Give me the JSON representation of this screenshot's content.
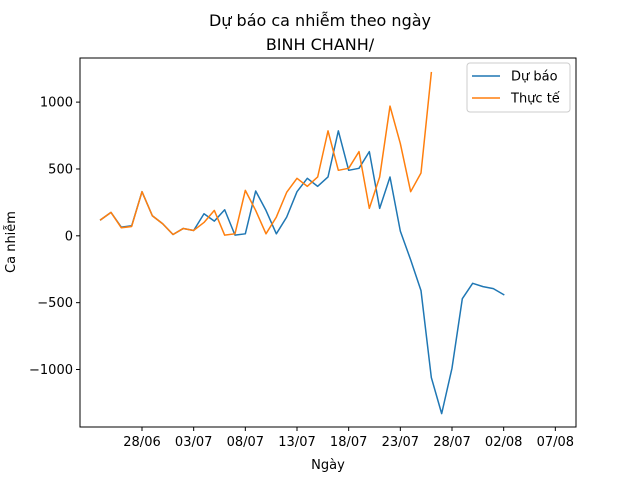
{
  "chart_data": {
    "type": "line",
    "title": "Dự báo ca nhiễm theo ngày",
    "subtitle": "BINH CHANH/",
    "xlabel": "Ngày",
    "ylabel": "Ca nhiễm",
    "xlim": [
      "2021-06-22",
      "2021-08-09"
    ],
    "ylim": [
      -1430,
      1330
    ],
    "x_ticks": [
      {
        "date": "2021-06-28",
        "label": "28/06"
      },
      {
        "date": "2021-07-03",
        "label": "03/07"
      },
      {
        "date": "2021-07-08",
        "label": "08/07"
      },
      {
        "date": "2021-07-13",
        "label": "13/07"
      },
      {
        "date": "2021-07-18",
        "label": "18/07"
      },
      {
        "date": "2021-07-23",
        "label": "23/07"
      },
      {
        "date": "2021-07-28",
        "label": "28/07"
      },
      {
        "date": "2021-08-02",
        "label": "02/08"
      },
      {
        "date": "2021-08-07",
        "label": "07/08"
      }
    ],
    "y_ticks": [
      {
        "value": 1000,
        "label": "1000"
      },
      {
        "value": 500,
        "label": "500"
      },
      {
        "value": 0,
        "label": "0"
      },
      {
        "value": -500,
        "label": "−500"
      },
      {
        "value": -1000,
        "label": "−1000"
      }
    ],
    "grid": false,
    "legend_position": "top-right",
    "series": [
      {
        "name": "Dự báo",
        "color": "#1f77b4",
        "points": [
          [
            "2021-06-24",
            120
          ],
          [
            "2021-06-25",
            175
          ],
          [
            "2021-06-26",
            65
          ],
          [
            "2021-06-27",
            75
          ],
          [
            "2021-06-28",
            330
          ],
          [
            "2021-06-29",
            150
          ],
          [
            "2021-06-30",
            90
          ],
          [
            "2021-07-01",
            10
          ],
          [
            "2021-07-02",
            55
          ],
          [
            "2021-07-03",
            40
          ],
          [
            "2021-07-04",
            165
          ],
          [
            "2021-07-05",
            110
          ],
          [
            "2021-07-06",
            195
          ],
          [
            "2021-07-07",
            5
          ],
          [
            "2021-07-08",
            15
          ],
          [
            "2021-07-09",
            335
          ],
          [
            "2021-07-10",
            190
          ],
          [
            "2021-07-11",
            15
          ],
          [
            "2021-07-12",
            140
          ],
          [
            "2021-07-13",
            330
          ],
          [
            "2021-07-14",
            430
          ],
          [
            "2021-07-15",
            370
          ],
          [
            "2021-07-16",
            440
          ],
          [
            "2021-07-17",
            785
          ],
          [
            "2021-07-18",
            490
          ],
          [
            "2021-07-19",
            505
          ],
          [
            "2021-07-20",
            630
          ],
          [
            "2021-07-21",
            205
          ],
          [
            "2021-07-22",
            440
          ],
          [
            "2021-07-23",
            35
          ],
          [
            "2021-07-24",
            -180
          ],
          [
            "2021-07-25",
            -410
          ],
          [
            "2021-07-26",
            -1060
          ],
          [
            "2021-07-27",
            -1330
          ],
          [
            "2021-07-28",
            -990
          ],
          [
            "2021-07-29",
            -470
          ],
          [
            "2021-07-30",
            -355
          ],
          [
            "2021-07-31",
            -380
          ],
          [
            "2021-08-01",
            -395
          ],
          [
            "2021-08-02",
            -440
          ]
        ]
      },
      {
        "name": "Thực tế",
        "color": "#ff7f0e",
        "points": [
          [
            "2021-06-24",
            120
          ],
          [
            "2021-06-25",
            175
          ],
          [
            "2021-06-26",
            60
          ],
          [
            "2021-06-27",
            70
          ],
          [
            "2021-06-28",
            330
          ],
          [
            "2021-06-29",
            150
          ],
          [
            "2021-06-30",
            90
          ],
          [
            "2021-07-01",
            10
          ],
          [
            "2021-07-02",
            55
          ],
          [
            "2021-07-03",
            40
          ],
          [
            "2021-07-04",
            100
          ],
          [
            "2021-07-05",
            190
          ],
          [
            "2021-07-06",
            5
          ],
          [
            "2021-07-07",
            15
          ],
          [
            "2021-07-08",
            340
          ],
          [
            "2021-07-09",
            190
          ],
          [
            "2021-07-10",
            15
          ],
          [
            "2021-07-11",
            140
          ],
          [
            "2021-07-12",
            325
          ],
          [
            "2021-07-13",
            430
          ],
          [
            "2021-07-14",
            370
          ],
          [
            "2021-07-15",
            440
          ],
          [
            "2021-07-16",
            785
          ],
          [
            "2021-07-17",
            490
          ],
          [
            "2021-07-18",
            505
          ],
          [
            "2021-07-19",
            630
          ],
          [
            "2021-07-20",
            205
          ],
          [
            "2021-07-21",
            440
          ],
          [
            "2021-07-22",
            970
          ],
          [
            "2021-07-23",
            690
          ],
          [
            "2021-07-24",
            330
          ],
          [
            "2021-07-25",
            470
          ],
          [
            "2021-07-26",
            1220
          ]
        ]
      }
    ]
  }
}
